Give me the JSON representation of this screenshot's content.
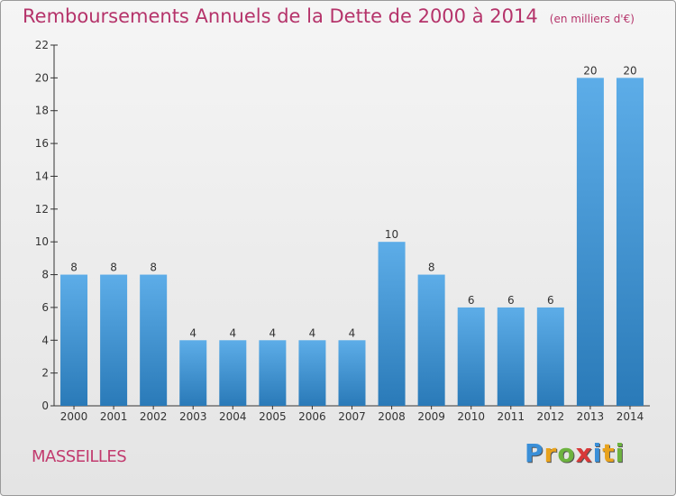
{
  "title": "Remboursements Annuels de la Dette de 2000 à 2014",
  "unit_note": "(en milliers d'€)",
  "commune": "MASSEILLES",
  "logo": {
    "letters": [
      "P",
      "r",
      "o",
      "x",
      "i",
      "t",
      "i"
    ],
    "colors": [
      "#3a8fd8",
      "#e8a21c",
      "#6db33f",
      "#d83a3a",
      "#3a8fd8",
      "#e8a21c",
      "#6db33f"
    ]
  },
  "colors": {
    "title": "#b5336a",
    "bar_top": "#5dade8",
    "bar_bottom": "#2a7ab8",
    "axis": "#333333"
  },
  "chart_data": {
    "type": "bar",
    "categories": [
      "2000",
      "2001",
      "2002",
      "2003",
      "2004",
      "2005",
      "2006",
      "2007",
      "2008",
      "2009",
      "2010",
      "2011",
      "2012",
      "2013",
      "2014"
    ],
    "values": [
      8,
      8,
      8,
      4,
      4,
      4,
      4,
      4,
      10,
      8,
      6,
      6,
      6,
      20,
      20
    ],
    "ylim": [
      0,
      22
    ],
    "yticks": [
      0,
      2,
      4,
      6,
      8,
      10,
      12,
      14,
      16,
      18,
      20,
      22
    ],
    "grid": false,
    "data_labels": true
  }
}
